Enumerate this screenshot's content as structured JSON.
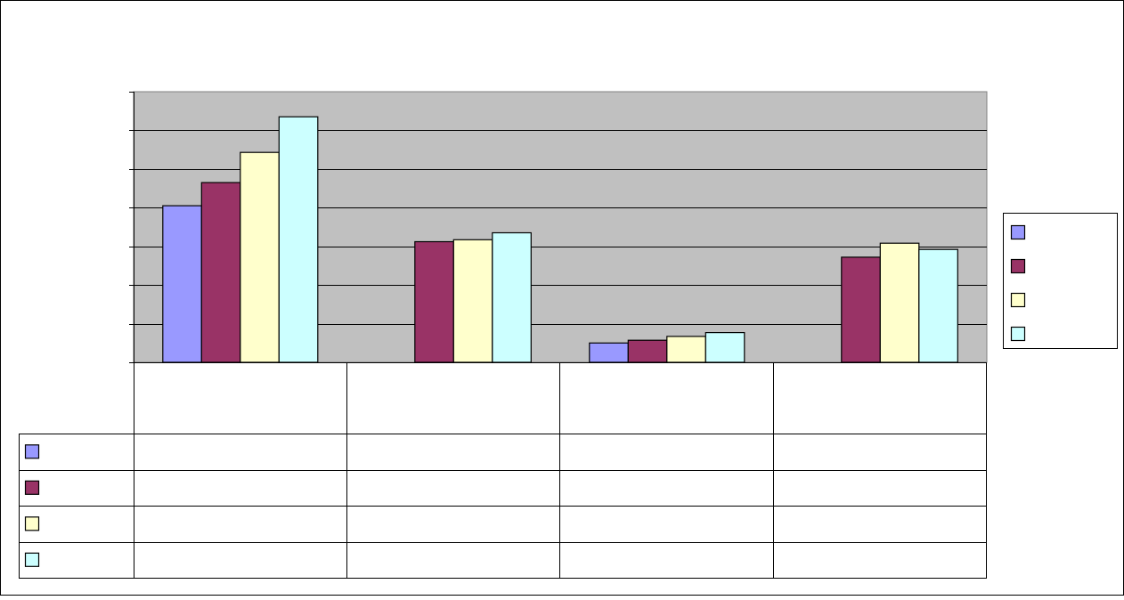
{
  "chart_data": {
    "type": "bar",
    "title": "",
    "xlabel": "",
    "ylabel": "",
    "ylim": [
      0,
      7
    ],
    "gridlines": [
      0,
      1,
      2,
      3,
      4,
      5,
      6,
      7
    ],
    "grid": true,
    "legend_position": "right",
    "plot_background": "#C0C0C0",
    "categories": [
      "",
      "",
      "",
      ""
    ],
    "series": [
      {
        "color": "#9999FF",
        "values": [
          4.05,
          null,
          0.5,
          null
        ]
      },
      {
        "color": "#993366",
        "values": [
          4.65,
          3.12,
          0.57,
          2.72
        ]
      },
      {
        "color": "#FFFFCC",
        "values": [
          5.43,
          3.17,
          0.67,
          3.08
        ]
      },
      {
        "color": "#CCFFFF",
        "values": [
          6.35,
          3.35,
          0.77,
          2.92
        ]
      }
    ]
  }
}
